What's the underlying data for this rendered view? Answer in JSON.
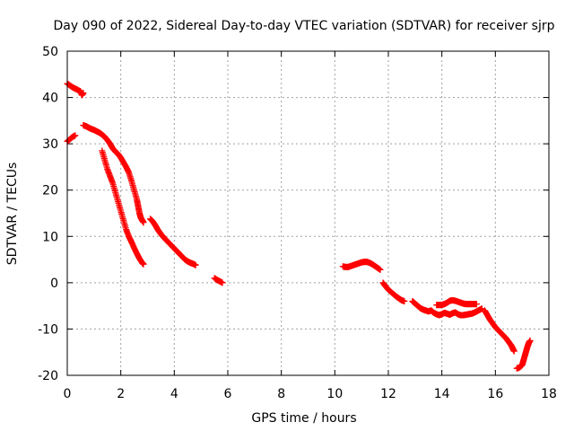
{
  "chart_data": {
    "type": "scatter",
    "title": "Day 090 of 2022, Sidereal Day-to-day VTEC variation (SDTVAR) for receiver sjrp",
    "xlabel": "GPS time / hours",
    "ylabel": "SDTVAR / TECUs",
    "xlim": [
      0,
      18
    ],
    "ylim": [
      -20,
      50
    ],
    "xticks": [
      0,
      2,
      4,
      6,
      8,
      10,
      12,
      14,
      16,
      18
    ],
    "yticks": [
      -20,
      -10,
      0,
      10,
      20,
      30,
      40,
      50
    ],
    "grid": true,
    "marker": "+",
    "color": "#ff0000",
    "series": [
      {
        "name": "arc-a",
        "x": [
          0.0,
          0.1,
          0.2,
          0.3,
          0.4,
          0.5,
          0.55,
          0.6
        ],
        "y": [
          43.0,
          42.6,
          42.2,
          41.9,
          41.6,
          41.3,
          40.5,
          41.0
        ]
      },
      {
        "name": "arc-b",
        "x": [
          0.0,
          0.1,
          0.2,
          0.3
        ],
        "y": [
          30.5,
          31.0,
          31.5,
          31.8
        ]
      },
      {
        "name": "arc-c",
        "x": [
          0.6,
          0.7,
          0.8,
          0.9,
          1.0,
          1.1,
          1.2,
          1.3,
          1.4,
          1.5,
          1.6,
          1.7,
          1.8,
          1.9,
          2.0,
          2.1,
          2.2,
          2.3,
          2.4,
          2.5,
          2.6,
          2.65,
          2.7,
          2.75,
          2.8,
          2.85
        ],
        "y": [
          34.0,
          33.8,
          33.5,
          33.2,
          33.0,
          32.7,
          32.4,
          32.0,
          31.5,
          30.8,
          30.0,
          29.0,
          28.3,
          27.8,
          27.0,
          26.0,
          25.0,
          23.8,
          22.0,
          20.0,
          18.0,
          16.5,
          15.0,
          14.0,
          13.5,
          13.0
        ]
      },
      {
        "name": "arc-d",
        "x": [
          1.3,
          1.4,
          1.5,
          1.6,
          1.7,
          1.8,
          1.9,
          2.0,
          2.1,
          2.2,
          2.3,
          2.4,
          2.5,
          2.6,
          2.7,
          2.8,
          2.85
        ],
        "y": [
          28.5,
          26.5,
          24.5,
          23.0,
          21.5,
          19.5,
          17.5,
          15.5,
          13.5,
          11.5,
          10.0,
          8.8,
          7.5,
          6.3,
          5.2,
          4.3,
          4.0
        ]
      },
      {
        "name": "arc-e",
        "x": [
          3.1,
          3.2,
          3.3,
          3.4,
          3.5,
          3.6,
          3.7,
          3.8,
          3.9,
          4.0,
          4.1,
          4.2,
          4.3,
          4.4,
          4.5,
          4.6,
          4.7,
          4.8
        ],
        "y": [
          13.8,
          13.2,
          12.3,
          11.3,
          10.5,
          9.8,
          9.2,
          8.6,
          8.0,
          7.4,
          6.8,
          6.2,
          5.6,
          5.0,
          4.6,
          4.3,
          4.1,
          3.8
        ]
      },
      {
        "name": "arc-f",
        "x": [
          5.5,
          5.6,
          5.7,
          5.8
        ],
        "y": [
          1.0,
          0.6,
          0.3,
          0.0
        ]
      },
      {
        "name": "arc-g",
        "x": [
          10.3,
          10.4,
          10.5,
          10.6,
          10.7,
          10.8,
          10.9,
          11.0,
          11.1,
          11.2,
          11.3,
          11.4,
          11.5,
          11.6,
          11.7
        ],
        "y": [
          3.5,
          3.4,
          3.4,
          3.6,
          3.8,
          4.0,
          4.2,
          4.4,
          4.5,
          4.5,
          4.3,
          4.0,
          3.6,
          3.2,
          2.8
        ]
      },
      {
        "name": "arc-h",
        "x": [
          11.8,
          11.9,
          12.0,
          12.1,
          12.2,
          12.3,
          12.4,
          12.5,
          12.6
        ],
        "y": [
          0.0,
          -0.8,
          -1.5,
          -2.0,
          -2.5,
          -3.0,
          -3.4,
          -3.8,
          -4.0
        ]
      },
      {
        "name": "arc-i",
        "x": [
          12.9,
          13.0,
          13.1,
          13.2,
          13.3,
          13.4,
          13.5,
          13.6,
          13.7,
          13.8,
          13.9,
          14.0,
          14.1,
          14.2,
          14.3,
          14.4,
          14.5,
          14.6,
          14.7,
          14.8,
          14.9,
          15.0,
          15.1,
          15.2,
          15.3,
          15.4,
          15.5
        ],
        "y": [
          -4.0,
          -4.5,
          -5.0,
          -5.5,
          -5.8,
          -6.0,
          -6.2,
          -6.0,
          -6.5,
          -6.8,
          -7.0,
          -6.8,
          -6.5,
          -6.7,
          -6.9,
          -6.6,
          -6.4,
          -6.8,
          -7.0,
          -7.0,
          -6.9,
          -6.8,
          -6.7,
          -6.5,
          -6.2,
          -5.9,
          -5.6
        ]
      },
      {
        "name": "arc-j",
        "x": [
          13.8,
          13.9,
          14.0,
          14.1,
          14.2,
          14.3,
          14.4,
          14.5,
          14.6,
          14.7,
          14.8,
          14.9,
          15.0,
          15.1,
          15.2,
          15.3
        ],
        "y": [
          -4.8,
          -4.8,
          -4.8,
          -4.6,
          -4.3,
          -3.9,
          -3.8,
          -3.9,
          -4.1,
          -4.3,
          -4.5,
          -4.6,
          -4.6,
          -4.6,
          -4.6,
          -4.6
        ]
      },
      {
        "name": "arc-k",
        "x": [
          15.6,
          15.7,
          15.8,
          15.9,
          16.0,
          16.1,
          16.2,
          16.3,
          16.4,
          16.5,
          16.6,
          16.65,
          16.7
        ],
        "y": [
          -6.0,
          -7.0,
          -8.0,
          -8.8,
          -9.6,
          -10.2,
          -10.8,
          -11.4,
          -12.0,
          -12.8,
          -13.6,
          -14.2,
          -14.8
        ]
      },
      {
        "name": "arc-l",
        "x": [
          16.8,
          16.9,
          17.0,
          17.05,
          17.1,
          17.15,
          17.2,
          17.25,
          17.3
        ],
        "y": [
          -18.5,
          -18.3,
          -17.8,
          -16.8,
          -15.8,
          -14.8,
          -13.8,
          -13.0,
          -12.5
        ]
      }
    ]
  }
}
